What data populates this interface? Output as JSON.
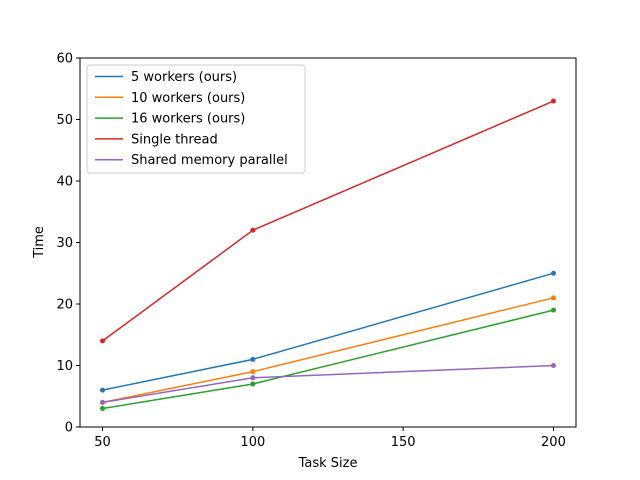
{
  "chart_data": {
    "type": "line",
    "title": "",
    "xlabel": "Task Size",
    "ylabel": "Time",
    "x": [
      50,
      100,
      200
    ],
    "xlim": [
      42.5,
      207.5
    ],
    "ylim": [
      0,
      60
    ],
    "xticks": [
      50,
      100,
      150,
      200
    ],
    "yticks": [
      0,
      10,
      20,
      30,
      40,
      50,
      60
    ],
    "grid": false,
    "legend_position": "upper-left",
    "series": [
      {
        "name": "5 workers (ours)",
        "color": "#1f77b4",
        "values": [
          6,
          11,
          25
        ]
      },
      {
        "name": "10 workers (ours)",
        "color": "#ff7f0e",
        "values": [
          4,
          9,
          21
        ]
      },
      {
        "name": "16 workers (ours)",
        "color": "#2ca02c",
        "values": [
          3,
          7,
          19
        ]
      },
      {
        "name": "Single thread",
        "color": "#d62728",
        "values": [
          14,
          32,
          53
        ]
      },
      {
        "name": "Shared memory parallel",
        "color": "#9467bd",
        "values": [
          4,
          8,
          10
        ]
      }
    ]
  }
}
